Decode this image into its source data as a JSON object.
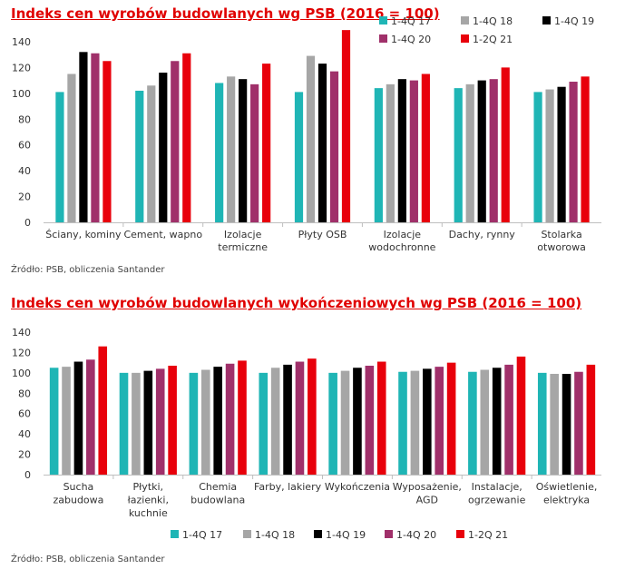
{
  "chart_data": [
    {
      "type": "bar",
      "title": "Indeks cen wyrobów budowlanych wg PSB (2016 = 100)",
      "source": "Źródło: PSB, obliczenia Santander",
      "categories": [
        [
          "Ściany, kominy"
        ],
        [
          "Cement, wapno"
        ],
        [
          "Izolacje",
          "termiczne"
        ],
        [
          "Płyty OSB"
        ],
        [
          "Izolacje",
          "wodochronne"
        ],
        [
          "Dachy, rynny"
        ],
        [
          "Stolarka",
          "otworowa"
        ]
      ],
      "series": [
        {
          "name": "1-4Q 17",
          "color": "#1fb5b5",
          "values": [
            101,
            102,
            108,
            101,
            104,
            104,
            101
          ]
        },
        {
          "name": "1-4Q 18",
          "color": "#a6a6a6",
          "values": [
            115,
            106,
            113,
            129,
            107,
            107,
            103
          ]
        },
        {
          "name": "1-4Q 19",
          "color": "#000000",
          "values": [
            132,
            116,
            111,
            123,
            111,
            110,
            105
          ]
        },
        {
          "name": "1-4Q 20",
          "color": "#a0306a",
          "values": [
            131,
            125,
            107,
            117,
            110,
            111,
            109
          ]
        },
        {
          "name": "1-2Q 21",
          "color": "#e8000b",
          "values": [
            125,
            131,
            123,
            149,
            115,
            120,
            113
          ]
        }
      ],
      "ylim": [
        0,
        160
      ],
      "yticks": [
        0,
        20,
        40,
        60,
        80,
        100,
        120,
        140
      ],
      "grid": false,
      "legend": "top-right"
    },
    {
      "type": "bar",
      "title": "Indeks cen wyrobów budowlanych wykończeniowych wg PSB (2016 = 100)",
      "source": "Źródło: PSB, obliczenia Santander",
      "categories": [
        [
          "Sucha",
          "zabudowa"
        ],
        [
          "Płytki,",
          "łazienki,",
          "kuchnie"
        ],
        [
          "Chemia",
          "budowlana"
        ],
        [
          "Farby, lakiery"
        ],
        [
          "Wykończenia"
        ],
        [
          "Wyposażenie,",
          "AGD"
        ],
        [
          "Instalacje,",
          "ogrzewanie"
        ],
        [
          "Oświetlenie,",
          "elektryka"
        ]
      ],
      "series": [
        {
          "name": "1-4Q 17",
          "color": "#1fb5b5",
          "values": [
            105,
            100,
            100,
            100,
            100,
            101,
            101,
            100
          ]
        },
        {
          "name": "1-4Q 18",
          "color": "#a6a6a6",
          "values": [
            106,
            100,
            103,
            105,
            102,
            102,
            103,
            99
          ]
        },
        {
          "name": "1-4Q 19",
          "color": "#000000",
          "values": [
            111,
            102,
            106,
            108,
            105,
            104,
            105,
            99
          ]
        },
        {
          "name": "1-4Q 20",
          "color": "#a0306a",
          "values": [
            113,
            104,
            109,
            111,
            107,
            106,
            108,
            101
          ]
        },
        {
          "name": "1-2Q 21",
          "color": "#e8000b",
          "values": [
            126,
            107,
            112,
            114,
            111,
            110,
            116,
            108
          ]
        }
      ],
      "ylim": [
        0,
        140
      ],
      "yticks": [
        0,
        20,
        40,
        60,
        80,
        100,
        120,
        140
      ],
      "grid": false,
      "legend": "bottom"
    }
  ]
}
